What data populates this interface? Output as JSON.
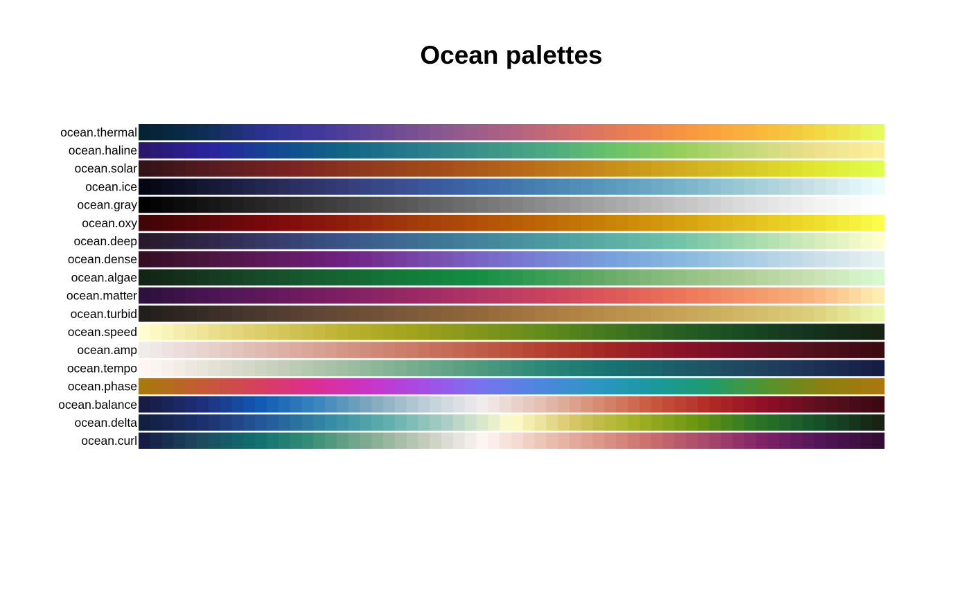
{
  "chart_data": {
    "type": "heatmap",
    "title": "Ocean palettes",
    "xlabel": "",
    "ylabel": "",
    "steps_per_palette": 64,
    "grid": false,
    "palettes": [
      {
        "name": "ocean.thermal",
        "stops": [
          "#042333",
          "#0f2e55",
          "#2c3395",
          "#453a9b",
          "#6a4a96",
          "#8d5a8e",
          "#b06283",
          "#d26f6b",
          "#ec8050",
          "#fa9a3e",
          "#fab63a",
          "#f2d640",
          "#e8fa5b"
        ]
      },
      {
        "name": "ocean.haline",
        "stops": [
          "#2a186c",
          "#2a23a0",
          "#114a91",
          "#106584",
          "#277a8e",
          "#39918a",
          "#4ba882",
          "#68c26a",
          "#96ce5b",
          "#c3d978",
          "#ecdf8a",
          "#fdef9a"
        ]
      },
      {
        "name": "ocean.solar",
        "stops": [
          "#331418",
          "#5a1c20",
          "#7a2321",
          "#8f3a1d",
          "#a24c1a",
          "#b5651a",
          "#c38219",
          "#cea31c",
          "#d6c124",
          "#e0e22e",
          "#e0fd4a"
        ]
      },
      {
        "name": "ocean.ice",
        "stops": [
          "#040613",
          "#171834",
          "#272b57",
          "#343d79",
          "#3b5196",
          "#3b69aa",
          "#4882b3",
          "#5b9abe",
          "#76b2c9",
          "#9dcad6",
          "#c8e0e5",
          "#eafdfd"
        ]
      },
      {
        "name": "ocean.gray",
        "stops": [
          "#000000",
          "#161616",
          "#2c2c2c",
          "#434343",
          "#5a5a5a",
          "#737373",
          "#8d8d8d",
          "#a7a7a7",
          "#c2c2c2",
          "#dcdcdc",
          "#f1f1f1",
          "#ffffff"
        ]
      },
      {
        "name": "ocean.oxy",
        "stops": [
          "#400505",
          "#5e0709",
          "#7f0a0c",
          "#8f1e0c",
          "#a23b0b",
          "#b14f07",
          "#bd6805",
          "#c98307",
          "#d69f10",
          "#e2bd1c",
          "#eddc2b",
          "#fbfd4a"
        ]
      },
      {
        "name": "ocean.deep",
        "stops": [
          "#281a2c",
          "#30284a",
          "#373d6b",
          "#3b5589",
          "#3e6d94",
          "#42839a",
          "#4b99a0",
          "#5caea6",
          "#71c3a8",
          "#9fd9aa",
          "#d1ebba",
          "#fdfecc"
        ]
      },
      {
        "name": "ocean.dense",
        "stops": [
          "#360e24",
          "#4c1540",
          "#61195f",
          "#702081",
          "#7743a4",
          "#7963c4",
          "#7784d5",
          "#77a1dd",
          "#86b7df",
          "#a6cce2",
          "#c8dde8",
          "#e6f1f1"
        ]
      },
      {
        "name": "ocean.algae",
        "stops": [
          "#122414",
          "#153a20",
          "#17502b",
          "#146630",
          "#127c3a",
          "#138e44",
          "#3c9e55",
          "#6aad6a",
          "#8fbe81",
          "#aecf97",
          "#c8e1b1",
          "#d7f9d0"
        ]
      },
      {
        "name": "ocean.matter",
        "stops": [
          "#2f0f3d",
          "#4a1554",
          "#64195c",
          "#7f1f63",
          "#992865",
          "#b23664",
          "#c9435f",
          "#dd5958",
          "#ec7459",
          "#f49467",
          "#f8b37d",
          "#fdedb0"
        ]
      },
      {
        "name": "ocean.turbid",
        "stops": [
          "#221e1b",
          "#3a2e27",
          "#523d31",
          "#684b36",
          "#7d5a39",
          "#93683a",
          "#a97a40",
          "#b98e4a",
          "#c6a256",
          "#d1b867",
          "#dccf79",
          "#e9f6ab"
        ]
      },
      {
        "name": "ocean.speed",
        "stops": [
          "#fffdcd",
          "#ebdf8e",
          "#d6c75d",
          "#bdb131",
          "#a1a31b",
          "#82961a",
          "#628b1b",
          "#42771f",
          "#275f23",
          "#174a22",
          "#13331e",
          "#172313"
        ]
      },
      {
        "name": "ocean.amp",
        "stops": [
          "#f1ecec",
          "#e6d0cb",
          "#ddb3a8",
          "#d49686",
          "#ca7a66",
          "#c05e49",
          "#b4402f",
          "#a22523",
          "#8a1227",
          "#6f0d24",
          "#51101c",
          "#3c0911"
        ]
      },
      {
        "name": "ocean.tempo",
        "stops": [
          "#fff6f4",
          "#e5e2d6",
          "#c5d0bb",
          "#a0bea2",
          "#78ad8e",
          "#519b7f",
          "#2a8776",
          "#177271",
          "#1c5d68",
          "#1f4760",
          "#1e3356",
          "#151d44"
        ]
      },
      {
        "name": "ocean.phase",
        "stops": [
          "#a8780d",
          "#c45b34",
          "#d6405d",
          "#de2d92",
          "#c934c8",
          "#a150e6",
          "#7674f0",
          "#4d87dd",
          "#2d95c4",
          "#19999e",
          "#1f9b6d",
          "#51952c",
          "#8a8010",
          "#a8780d"
        ]
      },
      {
        "name": "ocean.balance",
        "stops": [
          "#181c43",
          "#1e2f79",
          "#1058b4",
          "#3684bc",
          "#7fa8be",
          "#c0cfd8",
          "#f1ecec",
          "#e4c0b3",
          "#d78e75",
          "#c9583f",
          "#b12b25",
          "#8f0e27",
          "#5c0f1f",
          "#3c0912"
        ]
      },
      {
        "name": "ocean.delta",
        "stops": [
          "#112040",
          "#1c3170",
          "#245b9b",
          "#338aa2",
          "#62b0ad",
          "#b0d1c6",
          "#fffdcd",
          "#d8c666",
          "#a5b225",
          "#6b9611",
          "#2c7626",
          "#15522a",
          "#172313"
        ]
      },
      {
        "name": "ocean.curl",
        "stops": [
          "#151d44",
          "#1d4b5e",
          "#0e7070",
          "#3a9077",
          "#84ad91",
          "#c6cdbf",
          "#fff6f4",
          "#ecc7b8",
          "#dd9a8a",
          "#c96d6c",
          "#a7476d",
          "#7d2166",
          "#501657",
          "#340d35"
        ]
      }
    ]
  }
}
